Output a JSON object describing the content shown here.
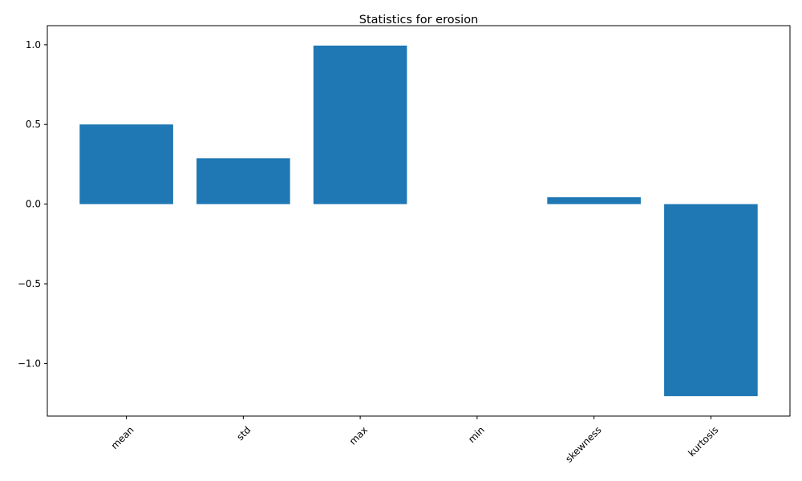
{
  "chart_data": {
    "type": "bar",
    "title": "Statistics for erosion",
    "xlabel": "",
    "ylabel": "",
    "categories": [
      "mean",
      "std",
      "max",
      "min",
      "skewness",
      "kurtosis"
    ],
    "values": [
      0.5,
      0.288,
      0.995,
      0.0,
      0.043,
      -1.205
    ],
    "ylim": [
      -1.33,
      1.12
    ],
    "yticks": [
      1.0,
      0.5,
      0.0,
      -0.5,
      -1.0
    ],
    "ytick_labels": [
      "1.0",
      "0.5",
      "0.0",
      "−0.5",
      "−1.0"
    ],
    "x_tick_rotation": 45,
    "bar_color": "#1f77b4",
    "grid": false,
    "legend": "none"
  }
}
